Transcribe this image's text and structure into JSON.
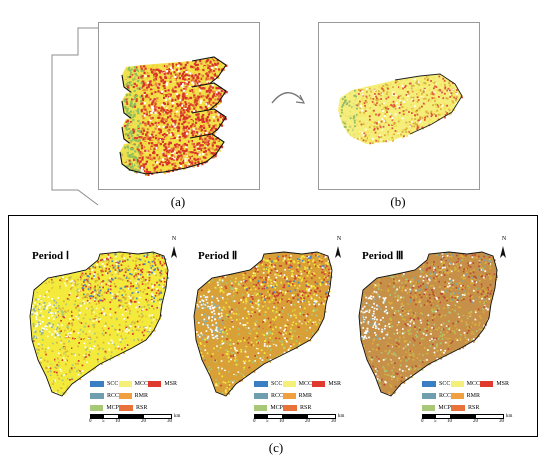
{
  "panels": {
    "a": {
      "label": "(a)"
    },
    "b": {
      "label": "(b)"
    },
    "c": {
      "label": "(c)"
    }
  },
  "maps": [
    {
      "title": "Period Ⅰ",
      "north": "N",
      "dominant": "#f4ea3c",
      "secondary": "#d9b13a",
      "hot": "#d83a2a",
      "cool": "#4a86c5"
    },
    {
      "title": "Period Ⅱ",
      "north": "N",
      "dominant": "#d9a038",
      "secondary": "#f4ea3c",
      "hot": "#c84030",
      "cool": "#4a86c5"
    },
    {
      "title": "Period Ⅲ",
      "north": "N",
      "dominant": "#c79048",
      "secondary": "#d9b13a",
      "hot": "#b84a32",
      "cool": "#7aa8a8"
    }
  ],
  "legend": {
    "items": [
      {
        "label": "SCC",
        "color": "#3a7fc4"
      },
      {
        "label": "MCC",
        "color": "#f5f07a"
      },
      {
        "label": "MSR",
        "color": "#e03a2e"
      },
      {
        "label": "RCC",
        "color": "#6f9fae"
      },
      {
        "label": "RMR",
        "color": "#f0a040"
      },
      {
        "label": "MCP",
        "color": "#a8c878"
      },
      {
        "label": "RSR",
        "color": "#e8723a"
      }
    ]
  },
  "scale": {
    "ticks": [
      "0",
      "5",
      "10",
      "20",
      "30"
    ],
    "unit": "km"
  }
}
